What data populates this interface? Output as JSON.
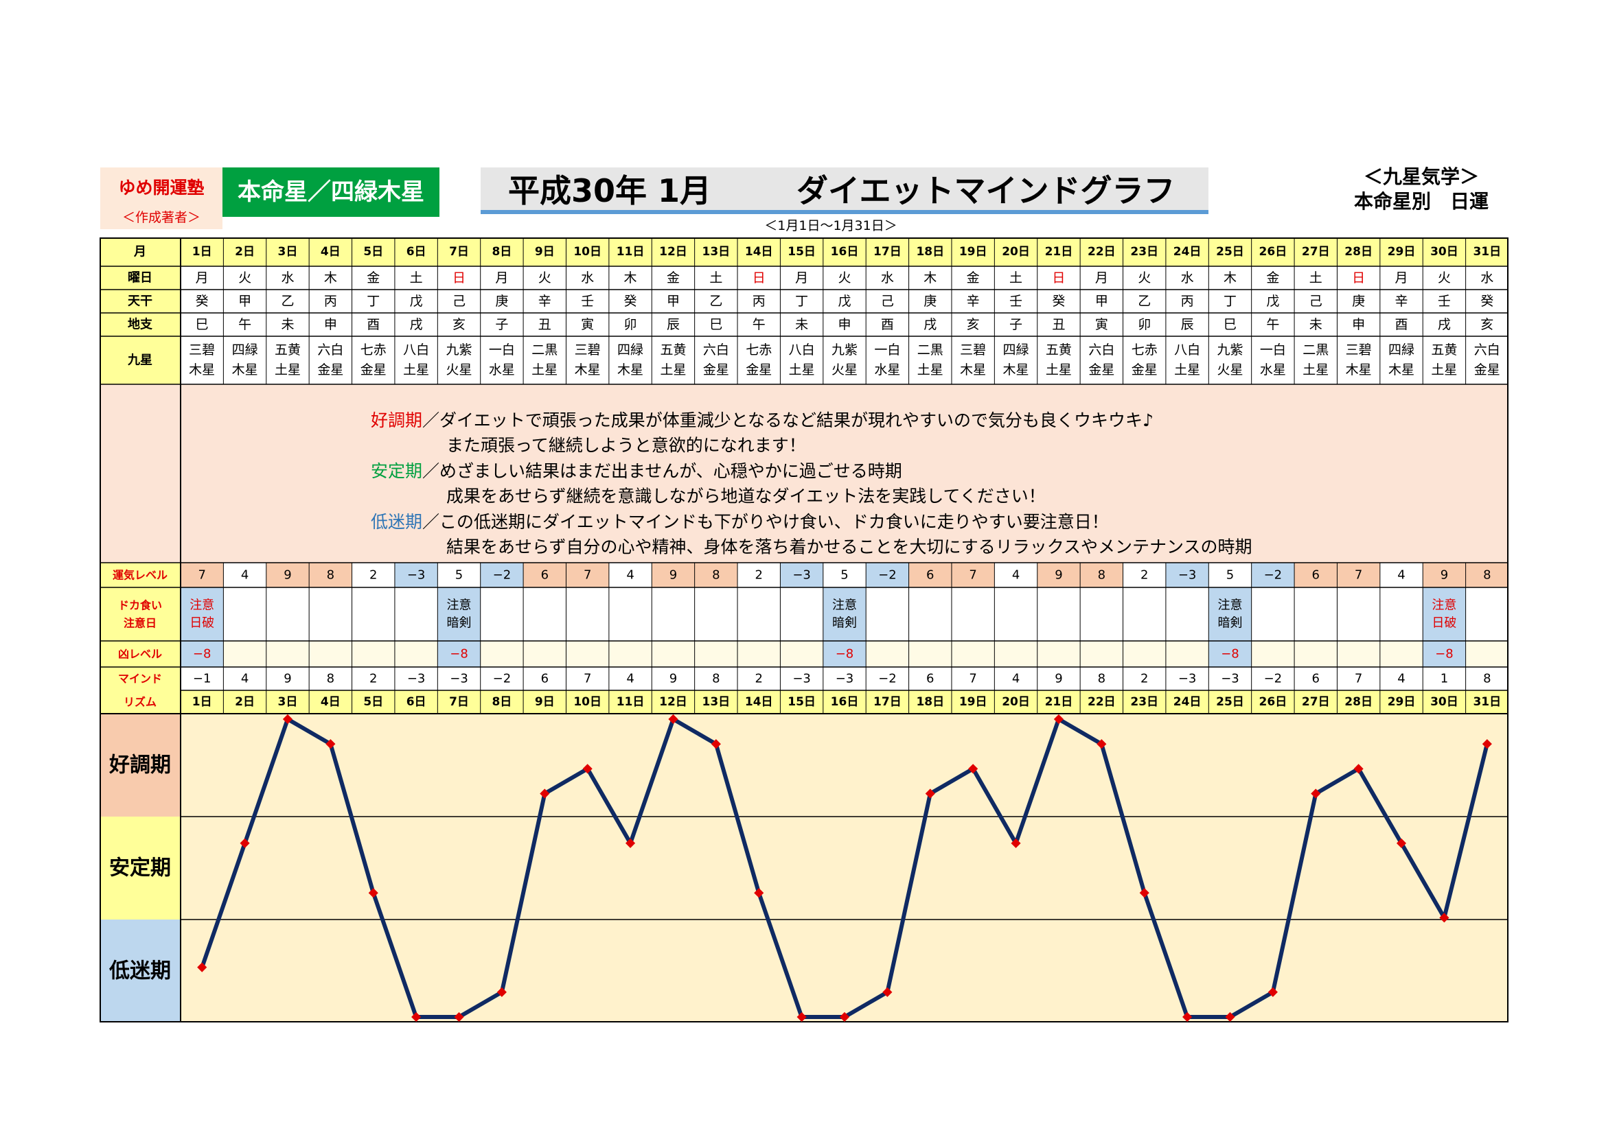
{
  "header": {
    "brand_line1": "ゆめ開運塾",
    "brand_line2": "＜作成著者＞",
    "honmei": "本命星／四緑木星",
    "title_main": "平成30年 1月",
    "title_sub": "ダイエットマインドグラフ",
    "date_range": "＜1月1日～1月31日＞",
    "school_line1": "＜九星気学＞",
    "school_line2": "本命星別　日運"
  },
  "colors": {
    "header_bg": "#ffff99",
    "level_high": "#f8cbad",
    "level_low": "#bdd7ee",
    "desc_bg": "#fce4d6",
    "chart_bg": "#fff2cc",
    "line": "#0f2a63",
    "marker": "#e00000",
    "band_good": "#f8cbad",
    "band_stable": "#ffff99",
    "band_low": "#bdd7ee"
  },
  "row_labels": {
    "month": "月",
    "weekday": "曜日",
    "tenkan": "天干",
    "chishi": "地支",
    "kyusei": "九星",
    "level": "運気レベル",
    "dokagui_1": "ドカ食い",
    "dokagui_2": "注意日",
    "kyo": "凶レベル",
    "mind_1": "マインド",
    "mind_2": "リズム"
  },
  "days": [
    "1日",
    "2日",
    "3日",
    "4日",
    "5日",
    "6日",
    "7日",
    "8日",
    "9日",
    "10日",
    "11日",
    "12日",
    "13日",
    "14日",
    "15日",
    "16日",
    "17日",
    "18日",
    "19日",
    "20日",
    "21日",
    "22日",
    "23日",
    "24日",
    "25日",
    "26日",
    "27日",
    "28日",
    "29日",
    "30日",
    "31日"
  ],
  "weekdays": [
    "月",
    "火",
    "水",
    "木",
    "金",
    "土",
    "日",
    "月",
    "火",
    "水",
    "木",
    "金",
    "土",
    "日",
    "月",
    "火",
    "水",
    "木",
    "金",
    "土",
    "日",
    "月",
    "火",
    "水",
    "木",
    "金",
    "土",
    "日",
    "月",
    "火",
    "水"
  ],
  "tenkan": [
    "癸",
    "甲",
    "乙",
    "丙",
    "丁",
    "戊",
    "己",
    "庚",
    "辛",
    "壬",
    "癸",
    "甲",
    "乙",
    "丙",
    "丁",
    "戊",
    "己",
    "庚",
    "辛",
    "壬",
    "癸",
    "甲",
    "乙",
    "丙",
    "丁",
    "戊",
    "己",
    "庚",
    "辛",
    "壬",
    "癸"
  ],
  "chishi": [
    "巳",
    "午",
    "未",
    "申",
    "酉",
    "戌",
    "亥",
    "子",
    "丑",
    "寅",
    "卯",
    "辰",
    "巳",
    "午",
    "未",
    "申",
    "酉",
    "戌",
    "亥",
    "子",
    "丑",
    "寅",
    "卯",
    "辰",
    "巳",
    "午",
    "未",
    "申",
    "酉",
    "戌",
    "亥"
  ],
  "kyusei": [
    [
      "三碧",
      "木星"
    ],
    [
      "四緑",
      "木星"
    ],
    [
      "五黄",
      "土星"
    ],
    [
      "六白",
      "金星"
    ],
    [
      "七赤",
      "金星"
    ],
    [
      "八白",
      "土星"
    ],
    [
      "九紫",
      "火星"
    ],
    [
      "一白",
      "水星"
    ],
    [
      "二黒",
      "土星"
    ],
    [
      "三碧",
      "木星"
    ],
    [
      "四緑",
      "木星"
    ],
    [
      "五黄",
      "土星"
    ],
    [
      "六白",
      "金星"
    ],
    [
      "七赤",
      "金星"
    ],
    [
      "八白",
      "土星"
    ],
    [
      "九紫",
      "火星"
    ],
    [
      "一白",
      "水星"
    ],
    [
      "二黒",
      "土星"
    ],
    [
      "三碧",
      "木星"
    ],
    [
      "四緑",
      "木星"
    ],
    [
      "五黄",
      "土星"
    ],
    [
      "六白",
      "金星"
    ],
    [
      "七赤",
      "金星"
    ],
    [
      "八白",
      "土星"
    ],
    [
      "九紫",
      "火星"
    ],
    [
      "一白",
      "水星"
    ],
    [
      "二黒",
      "土星"
    ],
    [
      "三碧",
      "木星"
    ],
    [
      "四緑",
      "木星"
    ],
    [
      "五黄",
      "土星"
    ],
    [
      "六白",
      "金星"
    ]
  ],
  "description": [
    {
      "label": "好調期",
      "label_color": "#e00000",
      "text": "／ダイエットで頑張った成果が体重減少となるなど結果が現れやすいので気分も良くウキウキ♪"
    },
    {
      "label": "",
      "label_color": "",
      "text": "また頑張って継続しようと意欲的になれます！"
    },
    {
      "label": "安定期",
      "label_color": "#00a040",
      "text": "／めざましい結果はまだ出ませんが、心穏やかに過ごせる時期"
    },
    {
      "label": "",
      "label_color": "",
      "text": "成果をあせらず継続を意識しながら地道なダイエット法を実践してください！"
    },
    {
      "label": "低迷期",
      "label_color": "#2e75b6",
      "text": "／この低迷期にダイエットマインドも下がりやけ食い、ドカ食いに走りやすい要注意日！"
    },
    {
      "label": "",
      "label_color": "",
      "text": "結果をあせらず自分の心や精神、身体を落ち着かせることを大切にするリラックスやメンテナンスの時期"
    }
  ],
  "level": [
    "7",
    "4",
    "9",
    "8",
    "2",
    "−3",
    "5",
    "−2",
    "6",
    "7",
    "4",
    "9",
    "8",
    "2",
    "−3",
    "5",
    "−2",
    "6",
    "7",
    "4",
    "9",
    "8",
    "2",
    "−3",
    "5",
    "−2",
    "6",
    "7",
    "4",
    "9",
    "8"
  ],
  "dokagui": [
    [
      "注意",
      "日破"
    ],
    [
      "",
      ""
    ],
    [
      "",
      ""
    ],
    [
      "",
      ""
    ],
    [
      "",
      ""
    ],
    [
      "",
      ""
    ],
    [
      "注意",
      "暗剣"
    ],
    [
      "",
      ""
    ],
    [
      "",
      ""
    ],
    [
      "",
      ""
    ],
    [
      "",
      ""
    ],
    [
      "",
      ""
    ],
    [
      "",
      ""
    ],
    [
      "",
      ""
    ],
    [
      "",
      ""
    ],
    [
      "注意",
      "暗剣"
    ],
    [
      "",
      ""
    ],
    [
      "",
      ""
    ],
    [
      "",
      ""
    ],
    [
      "",
      ""
    ],
    [
      "",
      ""
    ],
    [
      "",
      ""
    ],
    [
      "",
      ""
    ],
    [
      "",
      ""
    ],
    [
      "注意",
      "暗剣"
    ],
    [
      "",
      ""
    ],
    [
      "",
      ""
    ],
    [
      "",
      ""
    ],
    [
      "",
      ""
    ],
    [
      "注意",
      "日破"
    ],
    [
      "",
      ""
    ]
  ],
  "kyo": [
    "−8",
    "",
    "",
    "",
    "",
    "",
    "−8",
    "",
    "",
    "",
    "",
    "",
    "",
    "",
    "",
    "−8",
    "",
    "",
    "",
    "",
    "",
    "",
    "",
    "",
    "−8",
    "",
    "",
    "",
    "",
    "−8",
    ""
  ],
  "mind": [
    "−1",
    "4",
    "9",
    "8",
    "2",
    "−3",
    "−3",
    "−2",
    "6",
    "7",
    "4",
    "9",
    "8",
    "2",
    "−3",
    "−3",
    "−2",
    "6",
    "7",
    "4",
    "9",
    "8",
    "2",
    "−3",
    "−3",
    "−2",
    "6",
    "7",
    "4",
    "1",
    "8"
  ],
  "bands": [
    "好調期",
    "安定期",
    "低迷期"
  ],
  "chart_data": {
    "type": "line",
    "x": [
      "1日",
      "2日",
      "3日",
      "4日",
      "5日",
      "6日",
      "7日",
      "8日",
      "9日",
      "10日",
      "11日",
      "12日",
      "13日",
      "14日",
      "15日",
      "16日",
      "17日",
      "18日",
      "19日",
      "20日",
      "21日",
      "22日",
      "23日",
      "24日",
      "25日",
      "26日",
      "27日",
      "28日",
      "29日",
      "30日",
      "31日"
    ],
    "values": [
      -1,
      4,
      9,
      8,
      2,
      -3,
      -3,
      -2,
      6,
      7,
      4,
      9,
      8,
      2,
      -3,
      -3,
      -2,
      6,
      7,
      4,
      9,
      8,
      2,
      -3,
      -3,
      -2,
      6,
      7,
      4,
      1,
      8
    ],
    "ylim": [
      -3,
      9
    ],
    "bands": [
      "好調期",
      "安定期",
      "低迷期"
    ],
    "grid": true
  }
}
